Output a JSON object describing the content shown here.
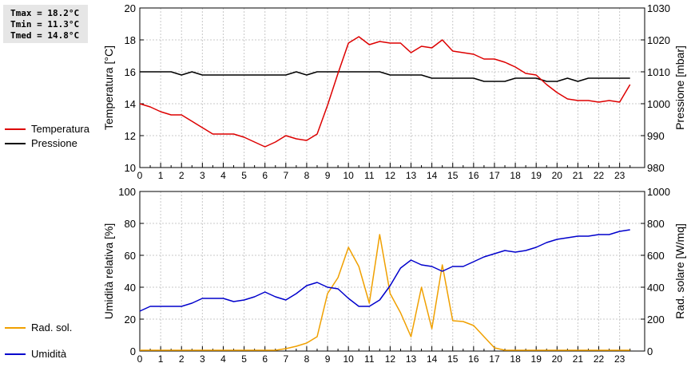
{
  "stats": {
    "tmax": "Tmax = 18.2°C",
    "tmin": "Tmin = 11.3°C",
    "tmed": "Tmed = 14.8°C"
  },
  "legend_top": [
    {
      "label": "Temperatura",
      "color": "#dd0000"
    },
    {
      "label": "Pressione",
      "color": "#000000"
    }
  ],
  "legend_bottom": [
    {
      "label": "Umidità",
      "color": "#0000cc"
    },
    {
      "label": "Rad. sol.",
      "color": "#f0a000"
    }
  ],
  "chart_data": [
    {
      "type": "line",
      "x": [
        0,
        0.5,
        1,
        1.5,
        2,
        2.5,
        3,
        3.5,
        4,
        4.5,
        5,
        5.5,
        6,
        6.5,
        7,
        7.5,
        8,
        8.5,
        9,
        9.5,
        10,
        10.5,
        11,
        11.5,
        12,
        12.5,
        13,
        13.5,
        14,
        14.5,
        15,
        15.5,
        16,
        16.5,
        17,
        17.5,
        18,
        18.5,
        19,
        19.5,
        20,
        20.5,
        21,
        21.5,
        22,
        22.5,
        23,
        23.5
      ],
      "xticks": [
        "0",
        "1",
        "2",
        "3",
        "4",
        "5",
        "6",
        "7",
        "8",
        "9",
        "10",
        "11",
        "12",
        "13",
        "14",
        "15",
        "16",
        "17",
        "18",
        "19",
        "20",
        "21",
        "22",
        "23"
      ],
      "xlim": [
        0,
        24.2
      ],
      "ylabel": "Temperatura [°C]",
      "ylim": [
        10,
        20
      ],
      "yticks": [
        "10",
        "12",
        "14",
        "16",
        "18",
        "20"
      ],
      "y2label": "Pressione [mbar]",
      "y2lim": [
        980,
        1030
      ],
      "y2ticks": [
        "980",
        "990",
        "1000",
        "1010",
        "1020",
        "1030"
      ],
      "grid": true,
      "series": [
        {
          "name": "Temperatura",
          "color": "#dd0000",
          "axis": "left",
          "values": [
            14.0,
            13.8,
            13.5,
            13.3,
            13.3,
            12.9,
            12.5,
            12.1,
            12.1,
            12.1,
            11.9,
            11.6,
            11.3,
            11.6,
            12.0,
            11.8,
            11.7,
            12.1,
            13.9,
            15.9,
            17.8,
            18.2,
            17.7,
            17.9,
            17.8,
            17.8,
            17.2,
            17.6,
            17.5,
            18.0,
            17.3,
            17.2,
            17.1,
            16.8,
            16.8,
            16.6,
            16.3,
            15.9,
            15.8,
            15.2,
            14.7,
            14.3,
            14.2,
            14.2,
            14.1,
            14.2,
            14.1,
            15.2
          ]
        },
        {
          "name": "Pressione",
          "color": "#000000",
          "axis": "right",
          "values": [
            1010,
            1010,
            1010,
            1010,
            1009,
            1010,
            1009,
            1009,
            1009,
            1009,
            1009,
            1009,
            1009,
            1009,
            1009,
            1010,
            1009,
            1010,
            1010,
            1010,
            1010,
            1010,
            1010,
            1010,
            1009,
            1009,
            1009,
            1009,
            1008,
            1008,
            1008,
            1008,
            1008,
            1007,
            1007,
            1007,
            1008,
            1008,
            1008,
            1007,
            1007,
            1008,
            1007,
            1008,
            1008,
            1008,
            1008,
            1008
          ]
        }
      ]
    },
    {
      "type": "line",
      "x": [
        0,
        0.5,
        1,
        1.5,
        2,
        2.5,
        3,
        3.5,
        4,
        4.5,
        5,
        5.5,
        6,
        6.5,
        7,
        7.5,
        8,
        8.5,
        9,
        9.5,
        10,
        10.5,
        11,
        11.5,
        12,
        12.5,
        13,
        13.5,
        14,
        14.5,
        15,
        15.5,
        16,
        16.5,
        17,
        17.5,
        18,
        18.5,
        19,
        19.5,
        20,
        20.5,
        21,
        21.5,
        22,
        22.5,
        23,
        23.5
      ],
      "xticks": [
        "0",
        "1",
        "2",
        "3",
        "4",
        "5",
        "6",
        "7",
        "8",
        "9",
        "10",
        "11",
        "12",
        "13",
        "14",
        "15",
        "16",
        "17",
        "18",
        "19",
        "20",
        "21",
        "22",
        "23"
      ],
      "xlim": [
        0,
        24.2
      ],
      "ylabel": "Umidità relativa [%]",
      "ylim": [
        0,
        100
      ],
      "yticks": [
        "0",
        "20",
        "40",
        "60",
        "80",
        "100"
      ],
      "y2label": "Rad. solare [W/mq]",
      "y2lim": [
        0,
        1000
      ],
      "y2ticks": [
        "0",
        "200",
        "400",
        "600",
        "800",
        "1000"
      ],
      "grid": true,
      "series": [
        {
          "name": "Umidità",
          "color": "#0000cc",
          "axis": "left",
          "values": [
            25,
            28,
            28,
            28,
            28,
            30,
            33,
            33,
            33,
            31,
            32,
            34,
            37,
            34,
            32,
            36,
            41,
            43,
            40,
            39,
            33,
            28,
            28,
            32,
            41,
            52,
            57,
            54,
            53,
            50,
            53,
            53,
            56,
            59,
            61,
            63,
            62,
            63,
            65,
            68,
            70,
            71,
            72,
            72,
            73,
            73,
            75,
            76
          ]
        },
        {
          "name": "Rad. sol.",
          "color": "#f0a000",
          "axis": "right",
          "values": [
            5,
            5,
            5,
            5,
            5,
            5,
            5,
            5,
            5,
            5,
            5,
            5,
            5,
            5,
            15,
            30,
            50,
            90,
            360,
            460,
            650,
            530,
            300,
            730,
            360,
            240,
            90,
            400,
            140,
            540,
            190,
            185,
            160,
            90,
            20,
            5,
            5,
            5,
            5,
            5,
            5,
            5,
            5,
            5,
            5,
            5,
            5,
            5
          ]
        }
      ]
    }
  ]
}
